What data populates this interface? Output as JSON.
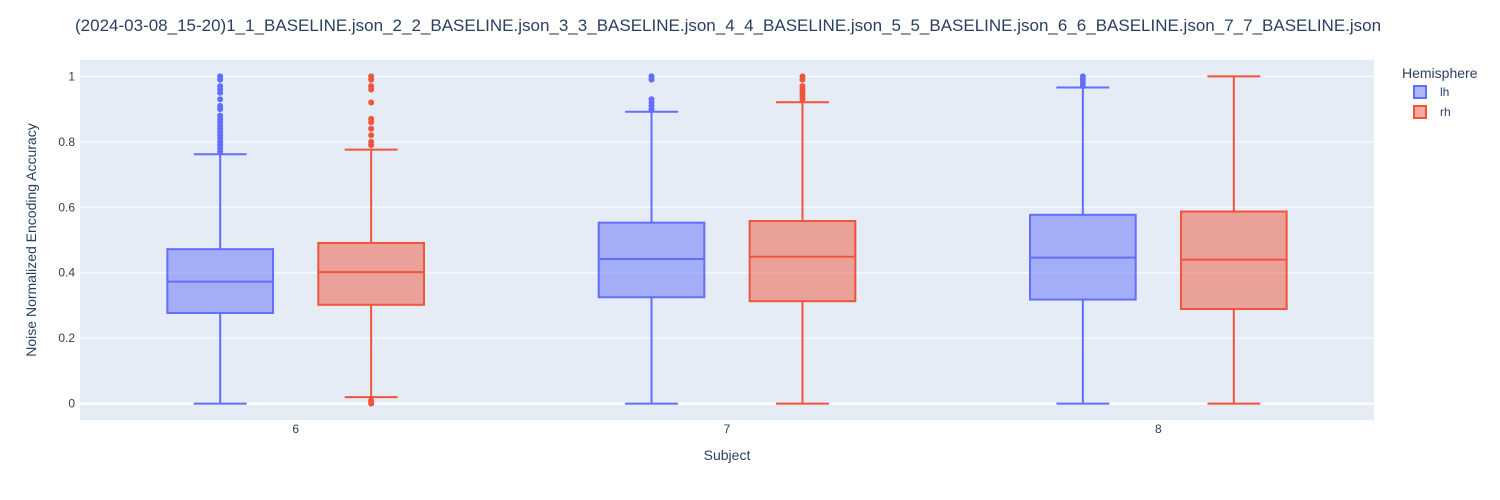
{
  "chart_data": {
    "type": "box",
    "title": "(2024-03-08_15-20)1_1_BASELINE.json_2_2_BASELINE.json_3_3_BASELINE.json_4_4_BASELINE.json_5_5_BASELINE.json_6_6_BASELINE.json_7_7_BASELINE.json",
    "xlabel": "Subject",
    "ylabel": "Noise Normalized Encoding Accuracy",
    "categories": [
      "6",
      "7",
      "8"
    ],
    "ylim": [
      -0.05,
      1.05
    ],
    "yticks": [
      0,
      0.2,
      0.4,
      0.6,
      0.8,
      1
    ],
    "ytick_labels": [
      "0",
      "0.2",
      "0.4",
      "0.6",
      "0.8",
      "1"
    ],
    "grid": true,
    "legend": {
      "title": "Hemisphere",
      "placement": "top-right"
    },
    "series": [
      {
        "name": "lh",
        "color": "#636efa",
        "boxes": [
          {
            "category": "6",
            "min": 0.0,
            "q1": 0.277,
            "median": 0.373,
            "q3": 0.472,
            "max": 0.762,
            "outliers": [
              0.77,
              0.78,
              0.79,
              0.8,
              0.81,
              0.82,
              0.83,
              0.84,
              0.85,
              0.86,
              0.87,
              0.88,
              0.9,
              0.91,
              0.93,
              0.95,
              0.96,
              0.97,
              0.99,
              1.0
            ]
          },
          {
            "category": "7",
            "min": 0.0,
            "q1": 0.325,
            "median": 0.442,
            "q3": 0.553,
            "max": 0.892,
            "outliers": [
              0.9,
              0.91,
              0.92,
              0.93,
              0.99,
              1.0
            ]
          },
          {
            "category": "8",
            "min": 0.0,
            "q1": 0.318,
            "median": 0.446,
            "q3": 0.577,
            "max": 0.966,
            "outliers": [
              0.97,
              0.98,
              0.99,
              1.0
            ]
          }
        ]
      },
      {
        "name": "rh",
        "color": "#ef553b",
        "boxes": [
          {
            "category": "6",
            "min": 0.02,
            "q1": 0.302,
            "median": 0.402,
            "q3": 0.491,
            "max": 0.776,
            "outliers": [
              0.0,
              0.005,
              0.01,
              0.79,
              0.8,
              0.82,
              0.84,
              0.86,
              0.87,
              0.92,
              0.96,
              0.97,
              0.99,
              1.0
            ]
          },
          {
            "category": "7",
            "min": 0.0,
            "q1": 0.313,
            "median": 0.449,
            "q3": 0.558,
            "max": 0.921,
            "outliers": [
              0.93,
              0.94,
              0.95,
              0.96,
              0.97,
              0.99,
              1.0
            ]
          },
          {
            "category": "8",
            "min": 0.0,
            "q1": 0.289,
            "median": 0.44,
            "q3": 0.587,
            "max": 1.0,
            "outliers": []
          }
        ]
      }
    ]
  }
}
